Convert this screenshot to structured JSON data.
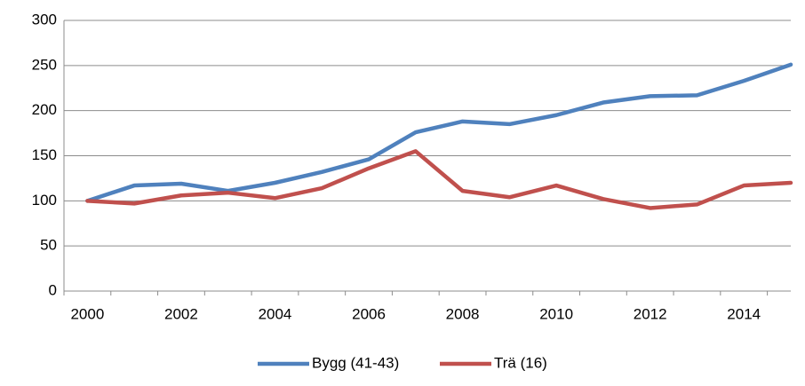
{
  "chart_data": {
    "type": "line",
    "categories": [
      "2000",
      null,
      "2002",
      null,
      "2004",
      null,
      "2006",
      null,
      "2008",
      null,
      "2010",
      null,
      "2012",
      null,
      "2014",
      null
    ],
    "series": [
      {
        "name": "Bygg (41-43)",
        "color": "#4f81bd",
        "values": [
          100,
          117,
          119,
          111,
          120,
          132,
          146,
          176,
          188,
          185,
          195,
          209,
          216,
          217,
          233,
          251
        ]
      },
      {
        "name": "Trä (16)",
        "color": "#c0504d",
        "values": [
          100,
          97,
          106,
          109,
          103,
          114,
          136,
          155,
          111,
          104,
          117,
          102,
          92,
          96,
          117,
          120
        ]
      }
    ],
    "ylim": [
      0,
      300
    ],
    "yticks": [
      0,
      50,
      100,
      150,
      200,
      250,
      300
    ],
    "grid": true,
    "legend": "bottom"
  }
}
